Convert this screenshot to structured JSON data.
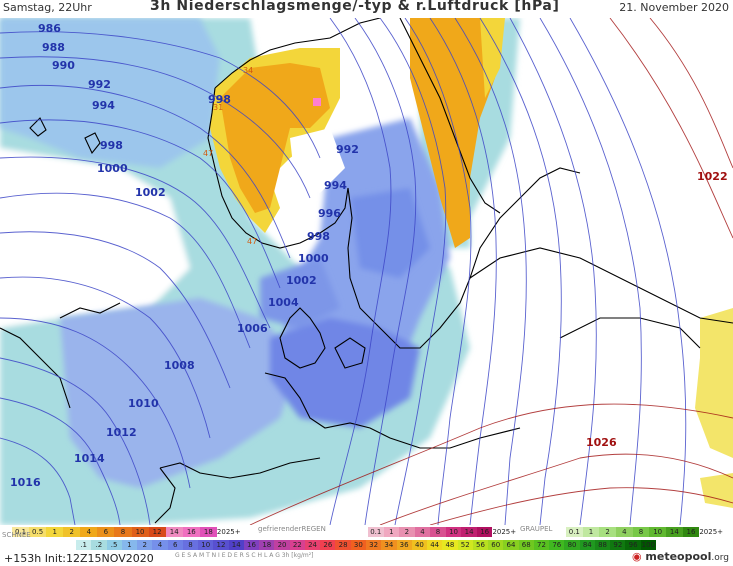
{
  "header": {
    "left": "Samstag, 22Uhr",
    "title": "3h Niederschlagsmenge/-typ & r.Luftdruck [hPa]",
    "date": "21. November 2020"
  },
  "isobars": {
    "blue": [
      "986",
      "988",
      "990",
      "992",
      "994",
      "998",
      "1000",
      "1002",
      "998",
      "992",
      "994",
      "996",
      "998",
      "1000",
      "1002",
      "1004",
      "1006",
      "1008",
      "1010",
      "1012",
      "1014",
      "1016"
    ],
    "red": [
      "1022",
      "1026"
    ]
  },
  "precip_labels": [
    "34",
    "31",
    "47",
    "47"
  ],
  "legend": {
    "snow_label": "SCHNEE",
    "freezing_rain_label": "gefrierenderREGEN",
    "graupel_label": "GRAUPEL",
    "total_label": "G E S A M T N I E D E R S C H L A G   3h   [kg/m²]",
    "snow_values": [
      "0.1",
      "0.5",
      "1",
      "2",
      "4",
      "6",
      "8",
      "10",
      "12",
      "14",
      "16",
      "18",
      "2025+"
    ],
    "freezing_values": [
      "0.1",
      "1",
      "2",
      "4",
      "8",
      "10",
      "14",
      "16",
      "2025+"
    ],
    "graupel_values": [
      "0.1",
      "1",
      "2",
      "4",
      "8",
      "10",
      "14",
      "16",
      "2025+"
    ],
    "rain_values": [
      ".1",
      ".2",
      ".5",
      "1",
      "2",
      "4",
      "6",
      "8",
      "10",
      "12",
      "14",
      "16",
      "18",
      "20",
      "22",
      "24",
      "26",
      "28",
      "30",
      "32",
      "34",
      "36",
      "40",
      "44",
      "48",
      "52",
      "56",
      "60",
      "64",
      "68",
      "72",
      "76",
      "80",
      "84",
      "88",
      "92",
      "96",
      "100"
    ]
  },
  "footer": {
    "run": "+153h",
    "init": "Init:12Z15NOV2020",
    "brand": "meteopool",
    "brand_tld": ".org"
  },
  "colors": {
    "land": "#ffffff",
    "light_precip": "#a8dce0",
    "medium_precip": "#8fb6ea",
    "heavy_precip": "#6680e6",
    "snow_orange": "#f0a81a",
    "snow_yellow": "#f3d63a",
    "isobar_blue": "#2233aa",
    "isobar_red": "#a01010"
  }
}
